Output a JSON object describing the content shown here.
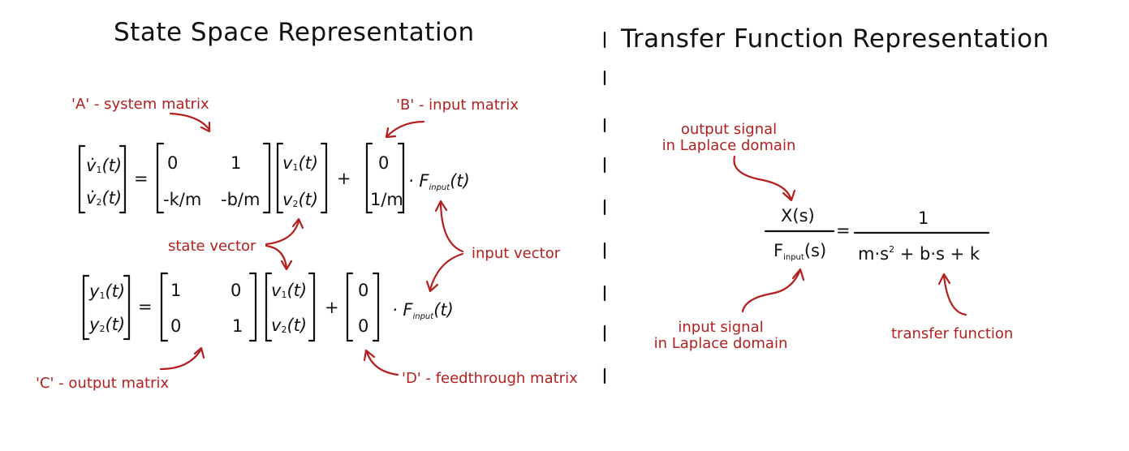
{
  "titles": {
    "state_space": "State Space Representation",
    "transfer_function": "Transfer Function Representation"
  },
  "annotations": {
    "a_system": "'A' - system matrix",
    "b_input": "'B' - input matrix",
    "state_vector": "state vector",
    "input_vector": "input vector",
    "c_output": "'C' - output matrix",
    "d_feedthrough": "'D' - feedthrough matrix",
    "output_signal_1": "output signal",
    "output_signal_2": "in Laplace domain",
    "input_signal_1": "input signal",
    "input_signal_2": "in Laplace domain",
    "transfer_fn": "transfer function"
  },
  "eq1": {
    "lhs": [
      "v̇",
      "1",
      "(t)",
      "v̇",
      "2",
      "(t)"
    ],
    "equals": "=",
    "A": [
      "0",
      "1",
      "-k/m",
      "-b/m"
    ],
    "x": [
      "v",
      "1",
      "(t)",
      "v",
      "2",
      "(t)"
    ],
    "plus": "+",
    "B": [
      "0",
      "1/m"
    ],
    "dot": "·",
    "F": "F",
    "F_sub": "input",
    "F_arg": "(t)"
  },
  "eq2": {
    "lhs": [
      "y",
      "1",
      "(t)",
      "y",
      "2",
      "(t)"
    ],
    "equals": "=",
    "C": [
      "1",
      "0",
      "0",
      "1"
    ],
    "x": [
      "v",
      "1",
      "(t)",
      "v",
      "2",
      "(t)"
    ],
    "plus": "+",
    "D": [
      "0",
      "0"
    ],
    "dot": "·",
    "F": "F",
    "F_sub": "input",
    "F_arg": "(t)"
  },
  "tf": {
    "num_left": "X(s)",
    "den_left_F": "F",
    "den_left_sub": "input",
    "den_left_arg": "(s)",
    "equals": "=",
    "num_right": "1",
    "den_right_a": "m·s",
    "den_right_exp": "2",
    "den_right_b": " + b·s + k"
  },
  "colors": {
    "ink": "#111111",
    "annotation": "#b3201f"
  }
}
